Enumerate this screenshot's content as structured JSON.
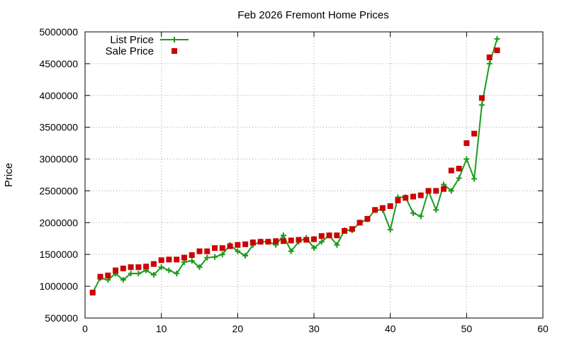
{
  "chart_data": {
    "type": "line",
    "title": "Feb 2026 Fremont Home Prices",
    "xlabel": "",
    "ylabel": "Price",
    "xlim": [
      0,
      60
    ],
    "ylim": [
      500000,
      5000000
    ],
    "xticks": [
      0,
      10,
      20,
      30,
      40,
      50,
      60
    ],
    "yticks": [
      500000,
      1000000,
      1500000,
      2000000,
      2500000,
      3000000,
      3500000,
      4000000,
      4500000,
      5000000
    ],
    "grid": true,
    "legend_position": "top-left",
    "series": [
      {
        "name": "List Price",
        "style": "linespoints",
        "marker": "plus",
        "color": "#1a9b1a",
        "x": [
          1,
          2,
          3,
          4,
          5,
          6,
          7,
          8,
          9,
          10,
          11,
          12,
          13,
          14,
          15,
          16,
          17,
          18,
          19,
          20,
          21,
          22,
          23,
          24,
          25,
          26,
          27,
          28,
          29,
          30,
          31,
          32,
          33,
          34,
          35,
          36,
          37,
          38,
          39,
          40,
          41,
          42,
          43,
          44,
          45,
          46,
          47,
          48,
          49,
          50,
          51,
          52,
          53,
          54
        ],
        "values": [
          900000,
          1130000,
          1100000,
          1200000,
          1100000,
          1200000,
          1200000,
          1250000,
          1180000,
          1300000,
          1250000,
          1200000,
          1380000,
          1400000,
          1300000,
          1450000,
          1460000,
          1500000,
          1650000,
          1550000,
          1480000,
          1650000,
          1700000,
          1700000,
          1650000,
          1800000,
          1550000,
          1700000,
          1760000,
          1600000,
          1700000,
          1800000,
          1650000,
          1880000,
          1880000,
          2000000,
          2050000,
          2200000,
          2200000,
          1890000,
          2400000,
          2400000,
          2150000,
          2100000,
          2500000,
          2200000,
          2600000,
          2500000,
          2700000,
          3000000,
          2690000,
          3850000,
          4500000,
          4890000
        ]
      },
      {
        "name": "Sale Price",
        "style": "points",
        "marker": "square",
        "color": "#cc0000",
        "x": [
          1,
          2,
          3,
          4,
          5,
          6,
          7,
          8,
          9,
          10,
          11,
          12,
          13,
          14,
          15,
          16,
          17,
          18,
          19,
          20,
          21,
          22,
          23,
          24,
          25,
          26,
          27,
          28,
          29,
          30,
          31,
          32,
          33,
          34,
          35,
          36,
          37,
          38,
          39,
          40,
          41,
          42,
          43,
          44,
          45,
          46,
          47,
          48,
          49,
          50,
          51,
          52,
          53,
          54
        ],
        "values": [
          900000,
          1150000,
          1170000,
          1250000,
          1280000,
          1300000,
          1300000,
          1310000,
          1350000,
          1410000,
          1420000,
          1420000,
          1450000,
          1490000,
          1550000,
          1550000,
          1600000,
          1600000,
          1630000,
          1650000,
          1660000,
          1690000,
          1700000,
          1700000,
          1710000,
          1710000,
          1720000,
          1730000,
          1730000,
          1740000,
          1790000,
          1800000,
          1800000,
          1870000,
          1900000,
          2000000,
          2060000,
          2200000,
          2230000,
          2260000,
          2350000,
          2390000,
          2410000,
          2430000,
          2500000,
          2500000,
          2530000,
          2820000,
          2850000,
          3250000,
          3400000,
          3960000,
          4600000,
          4710000
        ]
      }
    ]
  }
}
